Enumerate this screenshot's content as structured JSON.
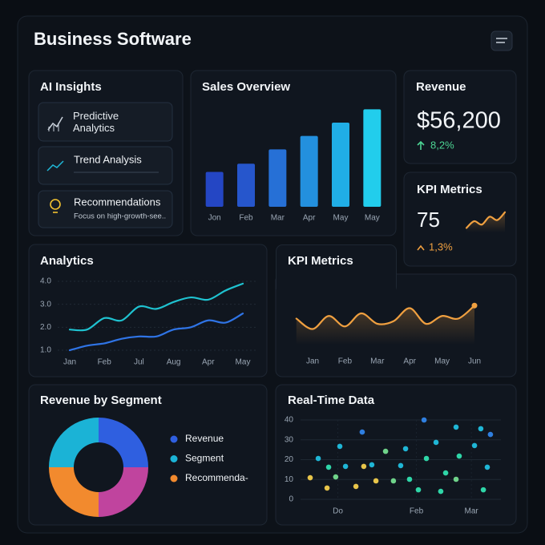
{
  "header": {
    "title": "Business Software"
  },
  "insights": {
    "title": "AI Insights",
    "items": [
      {
        "label": "Predictive Analytics"
      },
      {
        "label": "Trend Analysis"
      },
      {
        "label": "Recommendations",
        "detail": "Focus on high-growth-see.."
      }
    ]
  },
  "revenue_card": {
    "title": "Revenue",
    "value": "$56,200",
    "change": "8,2%"
  },
  "kpi_card": {
    "value": "75",
    "change": "1,3%"
  },
  "chart_data": [
    {
      "type": "bar",
      "title": "Sales Overview",
      "categories": [
        "Jon",
        "Feb",
        "Mar",
        "Apr",
        "May",
        "May"
      ],
      "values": [
        34,
        42,
        56,
        69,
        82,
        95
      ],
      "colors": [
        "#2446c4",
        "#2656cc",
        "#2670d6",
        "#2390de",
        "#20aee6",
        "#22cdec"
      ],
      "ylim": [
        0,
        100
      ]
    },
    {
      "type": "line",
      "title": "Analytics",
      "categories": [
        "Jan",
        null,
        "Feb",
        null,
        "Jul",
        null,
        "Aug",
        null,
        "Apr",
        null,
        "May"
      ],
      "series": [
        {
          "color": "#1fc2d0",
          "values": [
            1.9,
            1.9,
            2.4,
            2.3,
            2.9,
            2.8,
            3.1,
            3.3,
            3.2,
            3.6,
            3.9
          ]
        },
        {
          "color": "#2f74e6",
          "values": [
            1.0,
            1.2,
            1.3,
            1.5,
            1.6,
            1.6,
            1.9,
            2.0,
            2.3,
            2.2,
            2.6
          ]
        }
      ],
      "ylim": [
        1,
        4
      ],
      "yticks": [
        {
          "value": 4,
          "label": "4.0"
        },
        {
          "value": 3,
          "label": "3.0"
        },
        {
          "value": 2,
          "label": "2.0"
        },
        {
          "value": 1,
          "label": "1.0"
        }
      ],
      "grid": true
    },
    {
      "type": "line",
      "title": "KPI Metrics",
      "categories": [
        null,
        "Jan",
        null,
        "Feb",
        null,
        "Mar",
        null,
        "Apr",
        null,
        "May",
        null,
        "Jun"
      ],
      "values": [
        50,
        30,
        55,
        35,
        60,
        40,
        45,
        70,
        40,
        55,
        50,
        75
      ],
      "color": "#f0a040",
      "ylim": [
        0,
        100
      ],
      "area": true,
      "end_marker": true
    },
    {
      "type": "line",
      "title": "KPI Metrics",
      "values": [
        20,
        50,
        35,
        70,
        55,
        90
      ],
      "color": "#f0a040",
      "ylim": [
        0,
        100
      ],
      "area": true
    },
    {
      "type": "pie",
      "title": "Revenue by Segment",
      "categories": [
        "Revenue",
        "Segment",
        "Recommenda-",
        null
      ],
      "values": [
        25,
        25,
        25,
        25
      ],
      "colors": [
        "#2f5fe0",
        "#1bb3d6",
        "#f28a2e",
        "#c0449e"
      ],
      "donut": true
    },
    {
      "type": "scatter",
      "title": "Real-Time Data",
      "x": [
        4.9,
        9.0,
        13.5,
        14.3,
        17.9,
        20.0,
        22.9,
        28.2,
        31.4,
        32.2,
        36.3,
        38.4,
        43.3,
        47.3,
        51.0,
        53.5,
        55.5,
        60.0,
        62.9,
        64.1,
        69.0,
        71.4,
        73.9,
        79.2,
        79.2,
        80.8,
        88.6,
        91.8,
        93.1,
        95.1,
        96.7
      ],
      "values": [
        10.9,
        20.6,
        5.7,
        16.2,
        11.3,
        26.7,
        16.6,
        6.5,
        33.9,
        16.6,
        17.4,
        9.3,
        24.2,
        9.3,
        17.0,
        25.5,
        10.1,
        4.8,
        40.0,
        20.6,
        28.7,
        4.0,
        13.3,
        36.4,
        10.1,
        21.8,
        27.1,
        35.6,
        4.8,
        16.2,
        32.7
      ],
      "colors": [
        "#e8c54a",
        "#1fb6d6",
        "#e8c54a",
        "#2fd6a8",
        "#6fd38a",
        "#1fb6d6",
        "#1fb6d6",
        "#e8c54a",
        "#2f7fe0",
        "#e8c54a",
        "#1fb6d6",
        "#e8c54a",
        "#6fd38a",
        "#6fd38a",
        "#1fb6d6",
        "#1fb6d6",
        "#2fd6a8",
        "#2fd6a8",
        "#2f7fe0",
        "#2fd6a8",
        "#1fb6d6",
        "#2fd6a8",
        "#2fd6a8",
        "#1fb6d6",
        "#6fd38a",
        "#2fd6a8",
        "#1fb6d6",
        "#1fb6d6",
        "#2fd6a8",
        "#1fb6d6",
        "#2f7fe0"
      ],
      "xlim": [
        0,
        100
      ],
      "xticks": [
        {
          "value": 19,
          "label": "Do"
        },
        {
          "value": 59,
          "label": "Feb"
        },
        {
          "value": 87,
          "label": "Mar"
        }
      ],
      "ylim": [
        0,
        40
      ],
      "yticks": [
        0,
        10,
        20,
        30,
        40
      ],
      "grid": true
    }
  ]
}
